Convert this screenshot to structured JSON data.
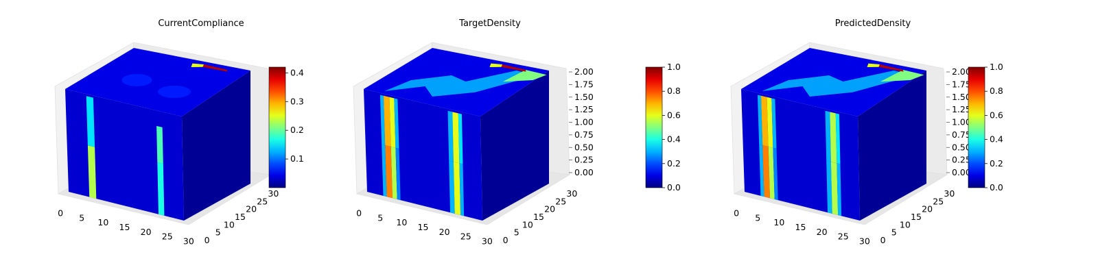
{
  "chart_data": [
    {
      "type": "voxel-3d",
      "title": "CurrentCompliance",
      "x_ticks": [
        "0",
        "5",
        "10",
        "15",
        "20",
        "25",
        "30"
      ],
      "y_ticks": [
        "0",
        "5",
        "10",
        "15",
        "20",
        "25",
        "30"
      ],
      "z_ticks": [],
      "colorbar": {
        "ticks": [
          "0.1",
          "0.2",
          "0.3",
          "0.4"
        ],
        "range": [
          0.0,
          0.42
        ],
        "colormap": "jet"
      },
      "note_values": {
        "stripe_left": 0.22,
        "stripe_right": 0.18,
        "hotspot_top": 0.4
      }
    },
    {
      "type": "voxel-3d",
      "title": "TargetDensity",
      "x_ticks": [
        "0",
        "5",
        "10",
        "15",
        "20",
        "25",
        "30"
      ],
      "y_ticks": [
        "0",
        "5",
        "10",
        "15",
        "20",
        "25",
        "30"
      ],
      "z_ticks": [
        "0.00",
        "0.25",
        "0.50",
        "0.75",
        "1.00",
        "1.25",
        "1.50",
        "1.75",
        "2.00"
      ],
      "colorbar": {
        "ticks": [
          "0.0",
          "0.2",
          "0.4",
          "0.6",
          "0.8",
          "1.0"
        ],
        "range": [
          0.0,
          1.0
        ],
        "colormap": "jet"
      },
      "note_values": {
        "stripe_left": 0.7,
        "stripe_right": 0.6,
        "hotspot_top": 1.0
      }
    },
    {
      "type": "voxel-3d",
      "title": "PredictedDensity",
      "x_ticks": [
        "0",
        "5",
        "10",
        "15",
        "20",
        "25",
        "30"
      ],
      "y_ticks": [
        "0",
        "5",
        "10",
        "15",
        "20",
        "25",
        "30"
      ],
      "z_ticks": [
        "0.00",
        "0.25",
        "0.50",
        "0.75",
        "1.00",
        "1.25",
        "1.50",
        "1.75",
        "2.00"
      ],
      "colorbar": {
        "ticks": [
          "0.0",
          "0.2",
          "0.4",
          "0.6",
          "0.8",
          "1.0"
        ],
        "range": [
          0.0,
          1.0
        ],
        "colormap": "jet"
      },
      "note_values": {
        "stripe_left": 0.7,
        "stripe_right": 0.55,
        "hotspot_top": 1.0
      }
    }
  ]
}
